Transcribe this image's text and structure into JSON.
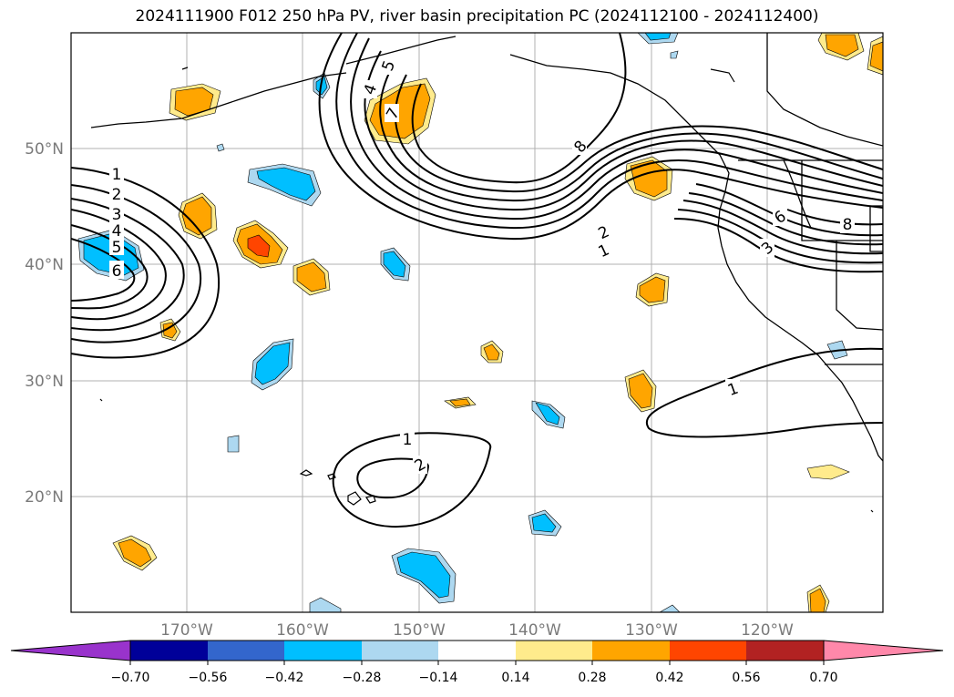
{
  "title": "2024111900 F012 250 hPa PV, river basin precipitation PC (2024112100 - 2024112400)",
  "latitude_labels": [
    "50°N",
    "40°N",
    "30°N",
    "20°N"
  ],
  "longitude_labels": [
    "170°W",
    "160°W",
    "150°W",
    "140°W",
    "130°W",
    "120°W"
  ],
  "contour_labels": [
    "1",
    "2",
    "3",
    "4",
    "5",
    "6",
    "7",
    "8",
    "1",
    "2",
    "1",
    "1",
    "2",
    "3",
    "4",
    "5",
    "6",
    "8"
  ],
  "colorbar": {
    "tick_labels": [
      "−0.70",
      "−0.56",
      "−0.42",
      "−0.28",
      "−0.14",
      "0.14",
      "0.28",
      "0.42",
      "0.56",
      "0.70"
    ],
    "colors": [
      "#9933cc",
      "#000099",
      "#3366cc",
      "#00bfff",
      "#add8f0",
      "#ffffff",
      "#ffeb8c",
      "#ffa500",
      "#ff4500",
      "#b22222",
      "#ff88aa"
    ]
  },
  "colors": {
    "neg_light": "#add8f0",
    "neg_mid": "#00bfff",
    "pos_light": "#ffeb8c",
    "pos_mid": "#ffa500",
    "pos_strong": "#ff4500"
  }
}
